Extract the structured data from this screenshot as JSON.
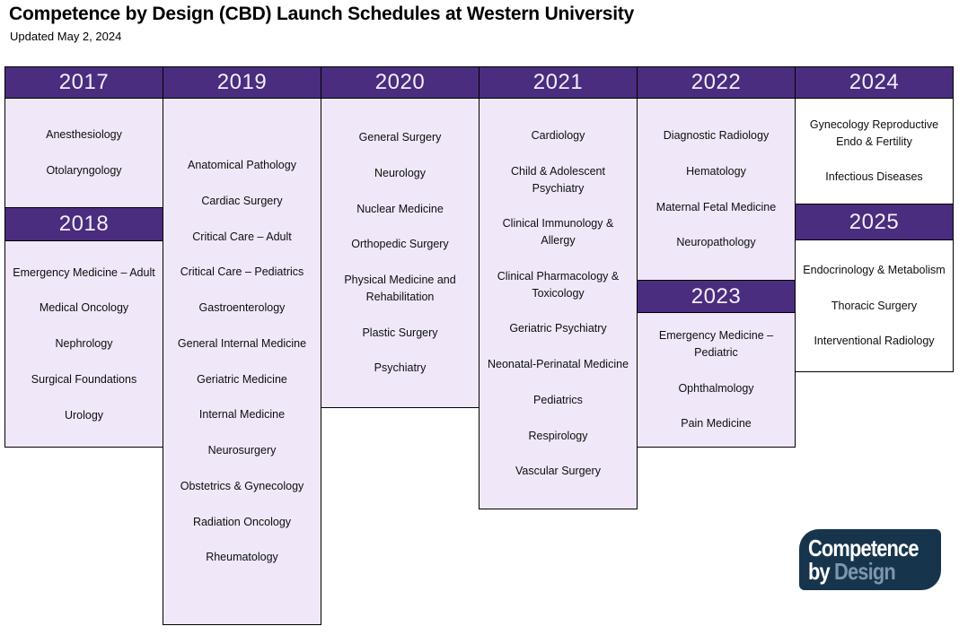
{
  "page": {
    "title": "Competence by Design (CBD) Launch Schedules at Western University",
    "subtitle": "Updated May 2, 2024"
  },
  "colors": {
    "header_purple": "#4A2D7E",
    "body_lavender": "#F0E8F8",
    "body_white": "#FFFFFF",
    "border_black": "#000000",
    "logo_navy": "#17344D",
    "logo_design_blue": "#7D96AD"
  },
  "columns": [
    {
      "sections": [
        {
          "year": "2017",
          "body_style": "lavender",
          "items": [
            "Anesthesiology",
            "Otolaryngology"
          ]
        },
        {
          "year": "2018",
          "body_style": "lavender",
          "items": [
            "Emergency Medicine – Adult",
            "Medical Oncology",
            "Nephrology",
            "Surgical Foundations",
            "Urology"
          ]
        }
      ]
    },
    {
      "sections": [
        {
          "year": "2019",
          "body_style": "lavender",
          "items": [
            "Anatomical Pathology",
            "Cardiac Surgery",
            "Critical Care – Adult",
            "Critical Care – Pediatrics",
            "Gastroenterology",
            "General Internal Medicine",
            "Geriatric Medicine",
            "Internal Medicine",
            "Neurosurgery",
            "Obstetrics & Gynecology",
            "Radiation Oncology",
            "Rheumatology"
          ]
        }
      ]
    },
    {
      "sections": [
        {
          "year": "2020",
          "body_style": "lavender",
          "items": [
            "General Surgery",
            "Neurology",
            "Nuclear Medicine",
            "Orthopedic Surgery",
            "Physical Medicine and Rehabilitation",
            "Plastic Surgery",
            "Psychiatry"
          ]
        }
      ]
    },
    {
      "sections": [
        {
          "year": "2021",
          "body_style": "lavender",
          "items": [
            "Cardiology",
            "Child & Adolescent Psychiatry",
            "Clinical Immunology & Allergy",
            "Clinical Pharmacology & Toxicology",
            "Geriatric Psychiatry",
            "Neonatal-Perinatal Medicine",
            "Pediatrics",
            "Respirology",
            "Vascular Surgery"
          ]
        }
      ]
    },
    {
      "sections": [
        {
          "year": "2022",
          "body_style": "lavender",
          "items": [
            "Diagnostic Radiology",
            "Hematology",
            "Maternal Fetal Medicine",
            "Neuropathology"
          ]
        },
        {
          "year": "2023",
          "body_style": "lavender",
          "items": [
            "Emergency Medicine – Pediatric",
            "Ophthalmology",
            "Pain Medicine"
          ]
        }
      ]
    },
    {
      "sections": [
        {
          "year": "2024",
          "body_style": "white",
          "items": [
            "Gynecology Reproductive Endo & Fertility",
            "Infectious Diseases"
          ]
        },
        {
          "year": "2025",
          "body_style": "white",
          "items": [
            "Endocrinology & Metabolism",
            "Thoracic Surgery",
            "Interventional Radiology"
          ]
        }
      ]
    }
  ],
  "logo": {
    "line1": "Competence",
    "line2_by": "by",
    "line2_design": "Design"
  }
}
